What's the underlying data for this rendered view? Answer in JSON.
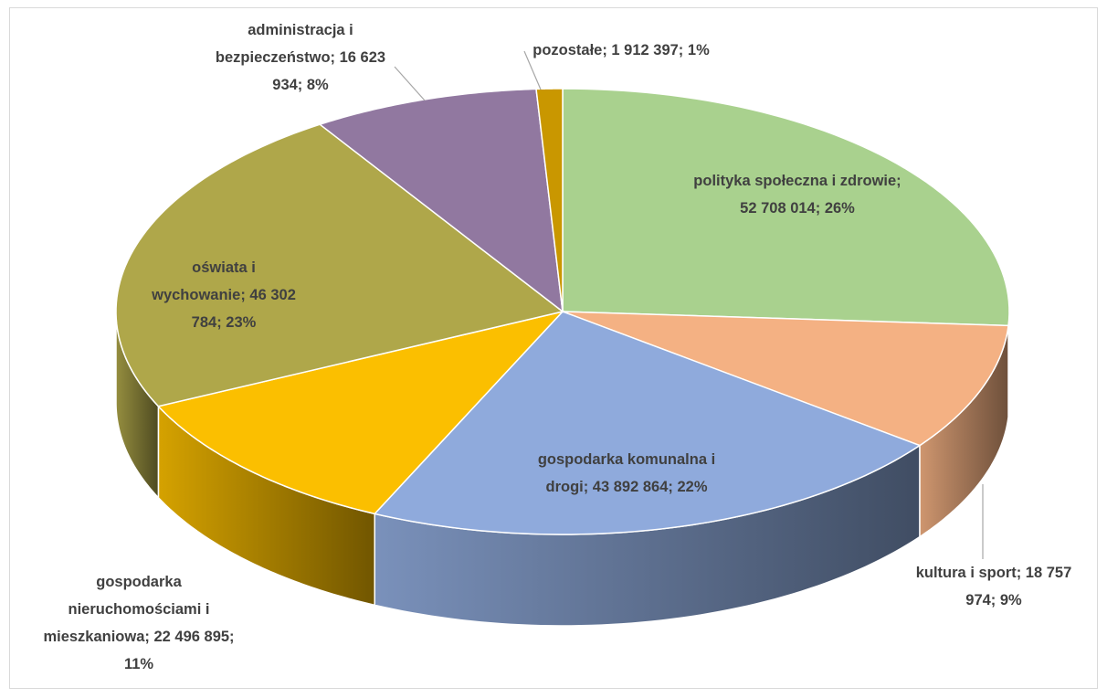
{
  "chart_data": {
    "type": "pie3d",
    "values": [
      52708014,
      18757974,
      43892864,
      22496895,
      46302784,
      16623934,
      1912397
    ],
    "value_labels": [
      "polityka społeczna i zdrowie; 52 708 014; 26%",
      "kultura i sport; 18 757 974; 9%",
      "gospodarka komunalna i drogi; 43 892 864; 22%",
      "gospodarka nieruchomościami i mieszkaniowa; 22 496 895; 11%",
      "oświata i wychowanie; 46 302 784; 23%",
      "administracja i bezpieczeństwo; 16 623 934; 8%",
      "pozostałe; 1 912 397; 1%"
    ],
    "colors": [
      "#a9d18e",
      "#f4b183",
      "#8faadc",
      "#fbbf00",
      "#afa74a",
      "#9178a0",
      "#c99700"
    ]
  }
}
